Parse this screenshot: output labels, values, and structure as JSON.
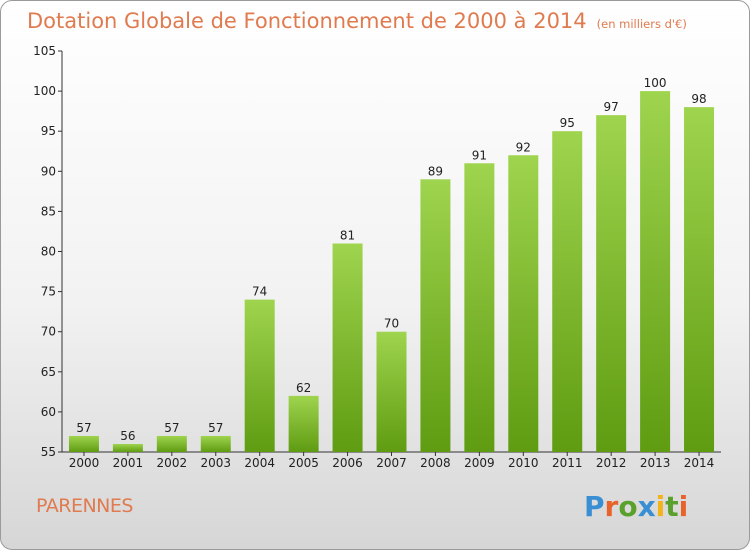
{
  "title": "Dotation Globale de Fonctionnement de 2000 à 2014",
  "unit_note": "(en milliers d'€)",
  "commune": "PARENNES",
  "brand": {
    "text": "Proxiti",
    "letter_colors": [
      "#3a8fd4",
      "#e8632c",
      "#5aa02c",
      "#3a8fd4",
      "#f2b418",
      "#5aa02c",
      "#e8632c"
    ]
  },
  "chart_data": {
    "type": "bar",
    "title": "Dotation Globale de Fonctionnement de 2000 à 2014",
    "categories": [
      "2000",
      "2001",
      "2002",
      "2003",
      "2004",
      "2005",
      "2006",
      "2007",
      "2008",
      "2009",
      "2010",
      "2011",
      "2012",
      "2013",
      "2014"
    ],
    "values": [
      57,
      56,
      57,
      57,
      74,
      62,
      81,
      70,
      89,
      91,
      92,
      95,
      97,
      100,
      98
    ],
    "ylim": [
      55,
      105
    ],
    "yticks": [
      55,
      60,
      65,
      70,
      75,
      80,
      85,
      90,
      95,
      100,
      105
    ],
    "grid": false,
    "bar_color_top": "#9fd44e",
    "bar_color_bottom": "#5f9c12"
  }
}
